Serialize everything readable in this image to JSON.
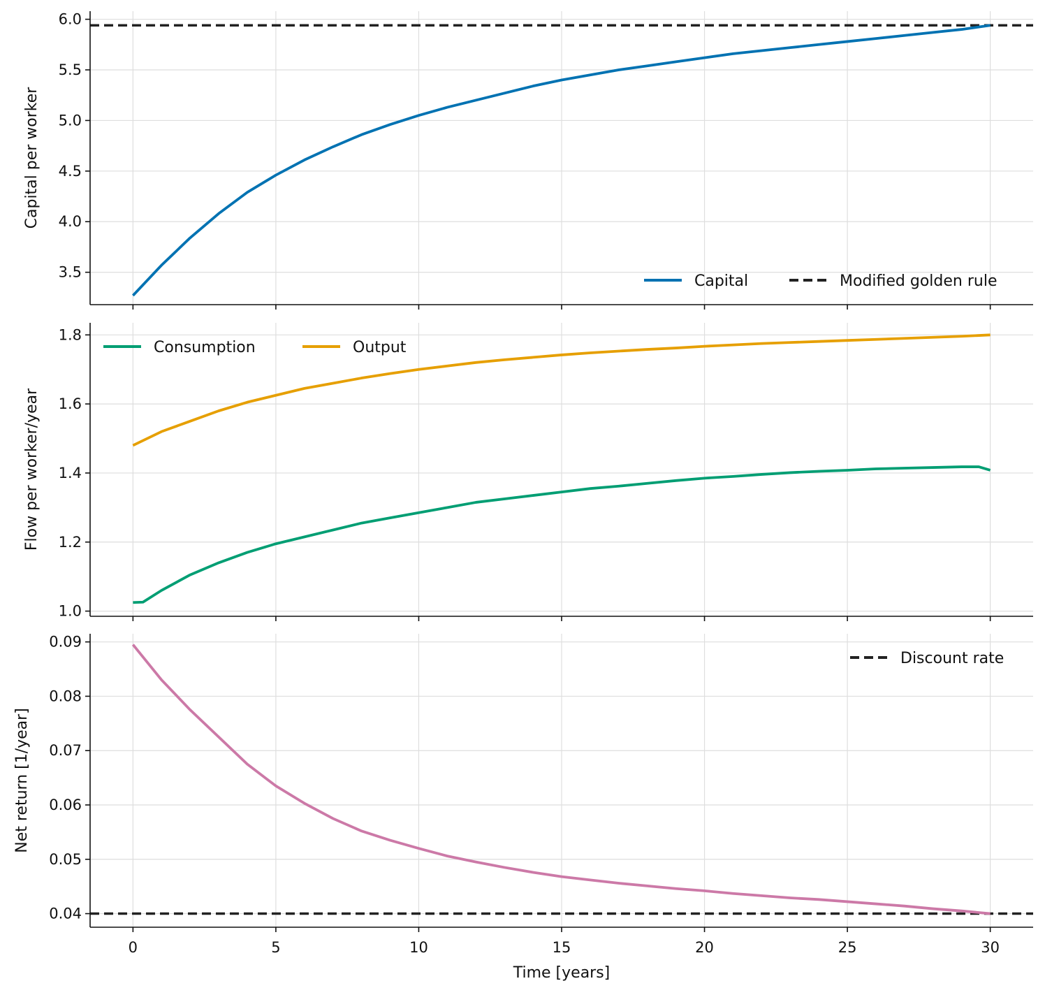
{
  "chart_data": [
    {
      "type": "line",
      "title": "",
      "xlabel": "",
      "ylabel": "Capital per worker",
      "xlim": [
        -1.5,
        31.5
      ],
      "ylim": [
        3.18,
        6.08
      ],
      "xticks": [
        0,
        5,
        10,
        15,
        20,
        25,
        30
      ],
      "xtick_labels": [
        "",
        "",
        "",
        "",
        "",
        "",
        ""
      ],
      "yticks": [
        3.5,
        4.0,
        4.5,
        5.0,
        5.5,
        6.0
      ],
      "ytick_labels": [
        "3.5",
        "4.0",
        "4.5",
        "5.0",
        "5.5",
        "6.0"
      ],
      "grid": true,
      "legend_position": "lower-right",
      "legend_columns": 2,
      "series": [
        {
          "name": "Capital",
          "color": "#0072b2",
          "style": "solid",
          "x": [
            0,
            1,
            2,
            3,
            4,
            5,
            6,
            7,
            8,
            9,
            10,
            11,
            12,
            13,
            14,
            15,
            16,
            17,
            18,
            19,
            20,
            21,
            22,
            23,
            24,
            25,
            26,
            27,
            28,
            29,
            30
          ],
          "y": [
            3.27,
            3.57,
            3.84,
            4.08,
            4.29,
            4.46,
            4.61,
            4.74,
            4.86,
            4.96,
            5.05,
            5.13,
            5.2,
            5.27,
            5.34,
            5.4,
            5.45,
            5.5,
            5.54,
            5.58,
            5.62,
            5.66,
            5.69,
            5.72,
            5.75,
            5.78,
            5.81,
            5.84,
            5.87,
            5.9,
            5.94
          ]
        }
      ],
      "reference_lines": [
        {
          "name": "Modified golden rule",
          "orientation": "horizontal",
          "value": 5.94,
          "color": "#222222",
          "style": "dashed"
        }
      ]
    },
    {
      "type": "line",
      "title": "",
      "xlabel": "",
      "ylabel": "Flow per worker/year",
      "xlim": [
        -1.5,
        31.5
      ],
      "ylim": [
        0.985,
        1.835
      ],
      "xticks": [
        0,
        5,
        10,
        15,
        20,
        25,
        30
      ],
      "xtick_labels": [
        "",
        "",
        "",
        "",
        "",
        "",
        ""
      ],
      "yticks": [
        1.0,
        1.2,
        1.4,
        1.6,
        1.8
      ],
      "ytick_labels": [
        "1.0",
        "1.2",
        "1.4",
        "1.6",
        "1.8"
      ],
      "grid": true,
      "legend_position": "upper-left",
      "legend_columns": 2,
      "series": [
        {
          "name": "Consumption",
          "color": "#009e73",
          "style": "solid",
          "x": [
            0,
            0.35,
            1,
            2,
            3,
            4,
            5,
            6,
            7,
            8,
            9,
            10,
            11,
            12,
            13,
            14,
            15,
            16,
            17,
            18,
            19,
            20,
            21,
            22,
            23,
            24,
            25,
            26,
            27,
            28,
            29,
            29.6,
            30
          ],
          "y": [
            1.025,
            1.026,
            1.06,
            1.105,
            1.14,
            1.17,
            1.195,
            1.215,
            1.235,
            1.255,
            1.27,
            1.285,
            1.3,
            1.315,
            1.325,
            1.335,
            1.345,
            1.355,
            1.362,
            1.37,
            1.378,
            1.385,
            1.39,
            1.396,
            1.401,
            1.405,
            1.408,
            1.412,
            1.414,
            1.416,
            1.418,
            1.418,
            1.408
          ]
        },
        {
          "name": "Output",
          "color": "#e69f00",
          "style": "solid",
          "x": [
            0,
            1,
            2,
            3,
            4,
            5,
            6,
            7,
            8,
            9,
            10,
            11,
            12,
            13,
            14,
            15,
            16,
            17,
            18,
            19,
            20,
            21,
            22,
            23,
            24,
            25,
            26,
            27,
            28,
            29,
            30
          ],
          "y": [
            1.48,
            1.52,
            1.55,
            1.58,
            1.605,
            1.625,
            1.645,
            1.66,
            1.675,
            1.688,
            1.7,
            1.71,
            1.72,
            1.728,
            1.735,
            1.742,
            1.748,
            1.753,
            1.758,
            1.762,
            1.767,
            1.771,
            1.775,
            1.778,
            1.781,
            1.784,
            1.787,
            1.79,
            1.793,
            1.796,
            1.8
          ]
        }
      ],
      "reference_lines": []
    },
    {
      "type": "line",
      "title": "",
      "xlabel": "Time [years]",
      "ylabel": "Net return [1/year]",
      "xlim": [
        -1.5,
        31.5
      ],
      "ylim": [
        0.0375,
        0.0915
      ],
      "xticks": [
        0,
        5,
        10,
        15,
        20,
        25,
        30
      ],
      "xtick_labels": [
        "0",
        "5",
        "10",
        "15",
        "20",
        "25",
        "30"
      ],
      "yticks": [
        0.04,
        0.05,
        0.06,
        0.07,
        0.08,
        0.09
      ],
      "ytick_labels": [
        "0.04",
        "0.05",
        "0.06",
        "0.07",
        "0.08",
        "0.09"
      ],
      "grid": true,
      "legend_position": "upper-right",
      "legend_columns": 1,
      "series": [
        {
          "name": "",
          "color": "#cc79a7",
          "style": "solid",
          "x": [
            0,
            1,
            2,
            3,
            4,
            5,
            6,
            7,
            8,
            9,
            10,
            11,
            12,
            13,
            14,
            15,
            16,
            17,
            18,
            19,
            20,
            21,
            22,
            23,
            24,
            25,
            26,
            27,
            28,
            29,
            30
          ],
          "y": [
            0.0895,
            0.083,
            0.0775,
            0.0725,
            0.0675,
            0.0635,
            0.0603,
            0.0575,
            0.0552,
            0.0535,
            0.052,
            0.0506,
            0.0495,
            0.0485,
            0.0476,
            0.0468,
            0.0462,
            0.0456,
            0.0451,
            0.0446,
            0.0442,
            0.0437,
            0.0433,
            0.0429,
            0.0426,
            0.0422,
            0.0418,
            0.0414,
            0.0409,
            0.0405,
            0.04
          ]
        }
      ],
      "reference_lines": [
        {
          "name": "Discount rate",
          "orientation": "horizontal",
          "value": 0.04,
          "color": "#222222",
          "style": "dashed"
        }
      ]
    }
  ]
}
